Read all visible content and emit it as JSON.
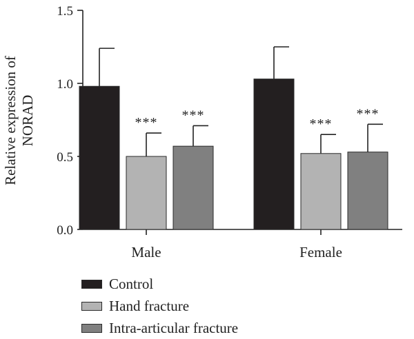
{
  "chart_data": {
    "type": "bar",
    "title": "",
    "xlabel": "",
    "ylabel": "Relative expression of NORAD",
    "ylabel_lines": [
      "Relative expression of",
      "NORAD"
    ],
    "ylim": [
      0,
      1.5
    ],
    "yticks": [
      0.0,
      0.5,
      1.0,
      1.5
    ],
    "ytick_labels": [
      "0.0",
      "0.5",
      "1.0",
      "1.5"
    ],
    "categories": [
      "Male",
      "Female"
    ],
    "series": [
      {
        "name": "Control",
        "values": [
          0.98,
          1.03
        ],
        "errors": [
          0.26,
          0.22
        ],
        "color": "#231f20",
        "annotation": [
          "",
          ""
        ]
      },
      {
        "name": "Hand fracture",
        "values": [
          0.5,
          0.52
        ],
        "errors": [
          0.16,
          0.13
        ],
        "color": "#b3b3b3",
        "annotation": [
          "***",
          "***"
        ]
      },
      {
        "name": "Intra-articular fracture",
        "values": [
          0.57,
          0.53
        ],
        "errors": [
          0.14,
          0.19
        ],
        "color": "#808080",
        "annotation": [
          "***",
          "***"
        ]
      }
    ],
    "grid": false,
    "legend_position": "bottom-left"
  }
}
